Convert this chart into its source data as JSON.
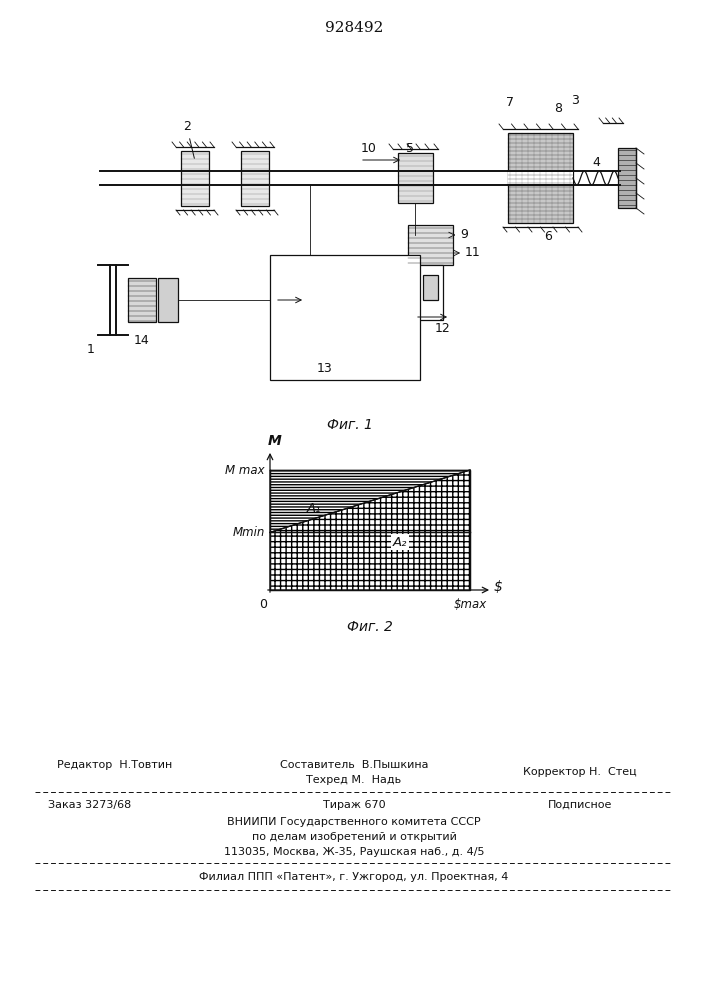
{
  "patent_number": "928492",
  "fig1_caption": "Фиг. 1",
  "fig2_caption": "Фиг. 2",
  "fig2_ylabel": "M",
  "fig2_xlabel": "$",
  "fig2_label_Mmax": "M max",
  "fig2_label_Mmin": "Mmin",
  "fig2_label_smax": "$max",
  "fig2_label_O": "0",
  "fig2_label_A1": "A₁",
  "fig2_label_A2": "A₂",
  "footer_editor": "Редактор  Н.Товтин",
  "footer_composer": "Составитель  В.Пышкина",
  "footer_techred": "Техред М.  Надь",
  "footer_corrector": "Корректор Н.  Стец",
  "footer_order": "Заказ 3273/68",
  "footer_tirazh": "Тираж 670",
  "footer_podp": "Подписное",
  "footer_vniip": "ВНИИПИ Государственного комитета СССР",
  "footer_po_delam": "по делам изобретений и открытий",
  "footer_address": "113035, Москва, Ж-35, Раушская наб., д. 4/5",
  "footer_filial": "Филиал ППП «Патент», г. Ужгород, ул. Проектная, 4",
  "lc": "#111111"
}
